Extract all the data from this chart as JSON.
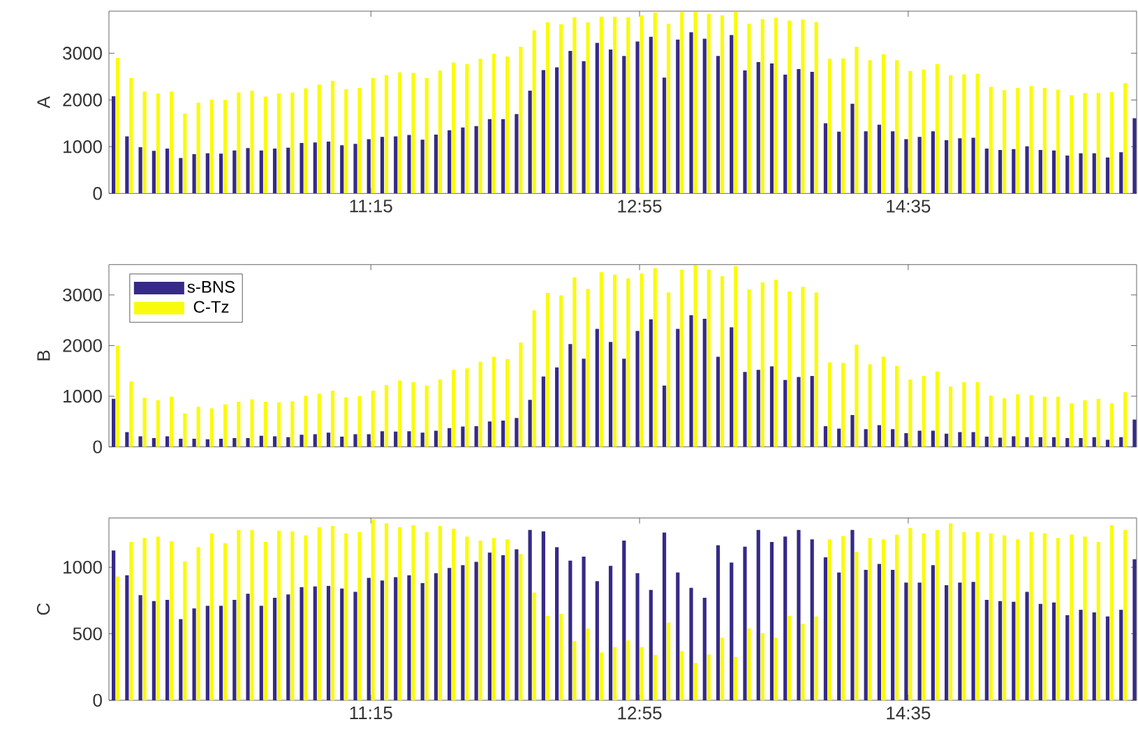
{
  "chart_data": [
    {
      "type": "bar",
      "ylabel": "A",
      "x": [
        9.6667,
        9.75,
        9.8333,
        9.9167,
        10,
        10.0833,
        10.1667,
        10.25,
        10.3333,
        10.4167,
        10.5,
        10.5833,
        10.6667,
        10.75,
        10.8333,
        10.9167,
        11,
        11.0833,
        11.1667,
        11.25,
        11.3333,
        11.4167,
        11.5,
        11.5833,
        11.6667,
        11.75,
        11.8333,
        11.9167,
        12,
        12.0833,
        12.1667,
        12.25,
        12.3333,
        12.4167,
        12.5,
        12.5833,
        12.6667,
        12.75,
        12.8333,
        12.9167,
        13,
        13.0833,
        13.1667,
        13.25,
        13.3333,
        13.4167,
        13.5,
        13.5833,
        13.6667,
        13.75,
        13.8333,
        13.9167,
        14,
        14.0833,
        14.1667,
        14.25,
        14.3333,
        14.4167,
        14.5,
        14.5833,
        14.6667,
        14.75,
        14.8333,
        14.9167,
        15,
        15.0833,
        15.1667,
        15.25,
        15.3333,
        15.4167,
        15.5,
        15.5833,
        15.6667,
        15.75,
        15.8333,
        15.9167,
        16
      ],
      "series": [
        {
          "color": "#352a87",
          "values": [
            2080,
            1220,
            990,
            910,
            960,
            760,
            840,
            860,
            850,
            920,
            970,
            920,
            960,
            980,
            1080,
            1090,
            1110,
            1030,
            1060,
            1160,
            1210,
            1220,
            1250,
            1150,
            1260,
            1350,
            1410,
            1440,
            1590,
            1590,
            1700,
            2200,
            2640,
            2700,
            3050,
            2830,
            3220,
            3080,
            2940,
            3250,
            3350,
            2480,
            3290,
            3450,
            3310,
            2940,
            3390,
            2630,
            2810,
            2780,
            2540,
            2660,
            2600,
            1500,
            1320,
            1920,
            1330,
            1470,
            1330,
            1160,
            1210,
            1330,
            1140,
            1180,
            1190,
            960,
            930,
            950,
            1010,
            930,
            920,
            810,
            860,
            860,
            770,
            880,
            1610
          ]
        },
        {
          "color": "#f9fb0e",
          "values": [
            2900,
            2470,
            2180,
            2140,
            2180,
            1710,
            1940,
            2010,
            2000,
            2160,
            2200,
            2070,
            2140,
            2160,
            2250,
            2330,
            2410,
            2230,
            2260,
            2470,
            2530,
            2590,
            2580,
            2470,
            2630,
            2800,
            2770,
            2880,
            2990,
            2930,
            3140,
            3490,
            3660,
            3620,
            3770,
            3660,
            3780,
            3780,
            3770,
            3810,
            3870,
            3630,
            3880,
            3880,
            3840,
            3810,
            3890,
            3630,
            3730,
            3760,
            3700,
            3720,
            3670,
            2880,
            2890,
            3140,
            2850,
            2980,
            2850,
            2620,
            2650,
            2770,
            2530,
            2550,
            2560,
            2280,
            2210,
            2260,
            2300,
            2260,
            2220,
            2100,
            2150,
            2150,
            2170,
            2360,
            null
          ]
        }
      ],
      "xlim": [
        9.625,
        16
      ],
      "ylim": [
        0,
        3900
      ],
      "xticks": [
        {
          "value": 11.25,
          "label": "11:15"
        },
        {
          "value": 12.9167,
          "label": "12:55"
        },
        {
          "value": 14.5833,
          "label": "14:35"
        }
      ],
      "yticks": [
        0,
        1000,
        2000,
        3000
      ]
    },
    {
      "type": "bar",
      "ylabel": "B",
      "x": [
        9.6667,
        9.75,
        9.8333,
        9.9167,
        10,
        10.0833,
        10.1667,
        10.25,
        10.3333,
        10.4167,
        10.5,
        10.5833,
        10.6667,
        10.75,
        10.8333,
        10.9167,
        11,
        11.0833,
        11.1667,
        11.25,
        11.3333,
        11.4167,
        11.5,
        11.5833,
        11.6667,
        11.75,
        11.8333,
        11.9167,
        12,
        12.0833,
        12.1667,
        12.25,
        12.3333,
        12.4167,
        12.5,
        12.5833,
        12.6667,
        12.75,
        12.8333,
        12.9167,
        13,
        13.0833,
        13.1667,
        13.25,
        13.3333,
        13.4167,
        13.5,
        13.5833,
        13.6667,
        13.75,
        13.8333,
        13.9167,
        14,
        14.0833,
        14.1667,
        14.25,
        14.3333,
        14.4167,
        14.5,
        14.5833,
        14.6667,
        14.75,
        14.8333,
        14.9167,
        15,
        15.0833,
        15.1667,
        15.25,
        15.3333,
        15.4167,
        15.5,
        15.5833,
        15.6667,
        15.75,
        15.8333,
        15.9167,
        16
      ],
      "series": [
        {
          "name": "s-BNS",
          "color": "#352a87",
          "values": [
            950,
            290,
            210,
            175,
            210,
            160,
            160,
            150,
            160,
            175,
            175,
            220,
            210,
            190,
            240,
            250,
            280,
            200,
            250,
            250,
            310,
            300,
            310,
            280,
            320,
            370,
            400,
            410,
            500,
            520,
            570,
            930,
            1390,
            1570,
            2030,
            1740,
            2330,
            2070,
            1740,
            2290,
            2520,
            1210,
            2330,
            2600,
            2530,
            1780,
            2360,
            1480,
            1520,
            1590,
            1320,
            1380,
            1400,
            410,
            360,
            630,
            350,
            430,
            350,
            270,
            320,
            320,
            260,
            290,
            290,
            200,
            180,
            210,
            190,
            190,
            190,
            175,
            175,
            190,
            140,
            190,
            540
          ]
        },
        {
          "name": "C-Tz",
          "color": "#f9fb0e",
          "values": [
            2000,
            1290,
            970,
            920,
            990,
            660,
            790,
            760,
            840,
            890,
            940,
            890,
            880,
            900,
            1010,
            1050,
            1110,
            980,
            1000,
            1110,
            1220,
            1310,
            1280,
            1210,
            1330,
            1520,
            1550,
            1680,
            1780,
            1730,
            2060,
            2700,
            3040,
            2990,
            3350,
            3120,
            3450,
            3400,
            3330,
            3420,
            3530,
            3050,
            3500,
            3590,
            3500,
            3370,
            3570,
            3110,
            3250,
            3300,
            3070,
            3160,
            3050,
            1670,
            1660,
            2020,
            1630,
            1780,
            1600,
            1330,
            1400,
            1490,
            1190,
            1280,
            1280,
            1010,
            960,
            1040,
            1020,
            990,
            990,
            860,
            920,
            950,
            860,
            1080,
            null
          ]
        }
      ],
      "xlim": [
        9.625,
        16
      ],
      "ylim": [
        0,
        3600
      ],
      "xticks": [
        {
          "value": 11.25,
          "label": null
        },
        {
          "value": 12.9167,
          "label": null
        },
        {
          "value": 14.5833,
          "label": null
        }
      ],
      "yticks": [
        0,
        1000,
        2000,
        3000
      ],
      "tick_labels": "y",
      "legend": "top left"
    },
    {
      "type": "bar",
      "ylabel": "C",
      "x": [
        9.6667,
        9.75,
        9.8333,
        9.9167,
        10,
        10.0833,
        10.1667,
        10.25,
        10.3333,
        10.4167,
        10.5,
        10.5833,
        10.6667,
        10.75,
        10.8333,
        10.9167,
        11,
        11.0833,
        11.1667,
        11.25,
        11.3333,
        11.4167,
        11.5,
        11.5833,
        11.6667,
        11.75,
        11.8333,
        11.9167,
        12,
        12.0833,
        12.1667,
        12.25,
        12.3333,
        12.4167,
        12.5,
        12.5833,
        12.6667,
        12.75,
        12.8333,
        12.9167,
        13,
        13.0833,
        13.1667,
        13.25,
        13.3333,
        13.4167,
        13.5,
        13.5833,
        13.6667,
        13.75,
        13.8333,
        13.9167,
        14,
        14.0833,
        14.1667,
        14.25,
        14.3333,
        14.4167,
        14.5,
        14.5833,
        14.6667,
        14.75,
        14.8333,
        14.9167,
        15,
        15.0833,
        15.1667,
        15.25,
        15.3333,
        15.4167,
        15.5,
        15.5833,
        15.6667,
        15.75,
        15.8333,
        15.9167,
        16
      ],
      "series": [
        {
          "color": "#352a87",
          "values": [
            1125,
            940,
            790,
            745,
            755,
            610,
            690,
            710,
            710,
            755,
            800,
            710,
            770,
            795,
            850,
            855,
            860,
            840,
            815,
            920,
            900,
            925,
            940,
            880,
            955,
            995,
            1015,
            1040,
            1110,
            1090,
            1135,
            1280,
            1270,
            1150,
            1050,
            1080,
            895,
            1010,
            1200,
            955,
            830,
            1260,
            960,
            845,
            770,
            1165,
            1035,
            1155,
            1280,
            1190,
            1230,
            1280,
            1210,
            1075,
            960,
            1280,
            980,
            1025,
            980,
            885,
            885,
            1015,
            865,
            885,
            890,
            755,
            745,
            740,
            815,
            725,
            735,
            640,
            680,
            660,
            630,
            680,
            1060
          ]
        },
        {
          "color": "#f9fb0e",
          "values": [
            930,
            1190,
            1220,
            1230,
            1195,
            1045,
            1150,
            1255,
            1180,
            1280,
            1280,
            1190,
            1275,
            1270,
            1240,
            1300,
            1310,
            1255,
            1265,
            1360,
            1330,
            1300,
            1315,
            1265,
            1310,
            1290,
            1230,
            1200,
            1220,
            1210,
            1100,
            810,
            635,
            650,
            445,
            540,
            360,
            400,
            450,
            400,
            340,
            585,
            370,
            280,
            345,
            470,
            325,
            540,
            505,
            470,
            635,
            575,
            630,
            1210,
            1235,
            1115,
            1220,
            1210,
            1245,
            1295,
            1255,
            1280,
            1330,
            1265,
            1265,
            1255,
            1240,
            1210,
            1265,
            1255,
            1220,
            1245,
            1230,
            1190,
            1315,
            1280,
            null
          ]
        }
      ],
      "xlim": [
        9.625,
        16
      ],
      "ylim": [
        0,
        1370
      ],
      "xticks": [
        {
          "value": 11.25,
          "label": "11:15"
        },
        {
          "value": 12.9167,
          "label": "12:55"
        },
        {
          "value": 14.5833,
          "label": "14:35"
        }
      ],
      "yticks": [
        0,
        500,
        1000
      ]
    }
  ]
}
